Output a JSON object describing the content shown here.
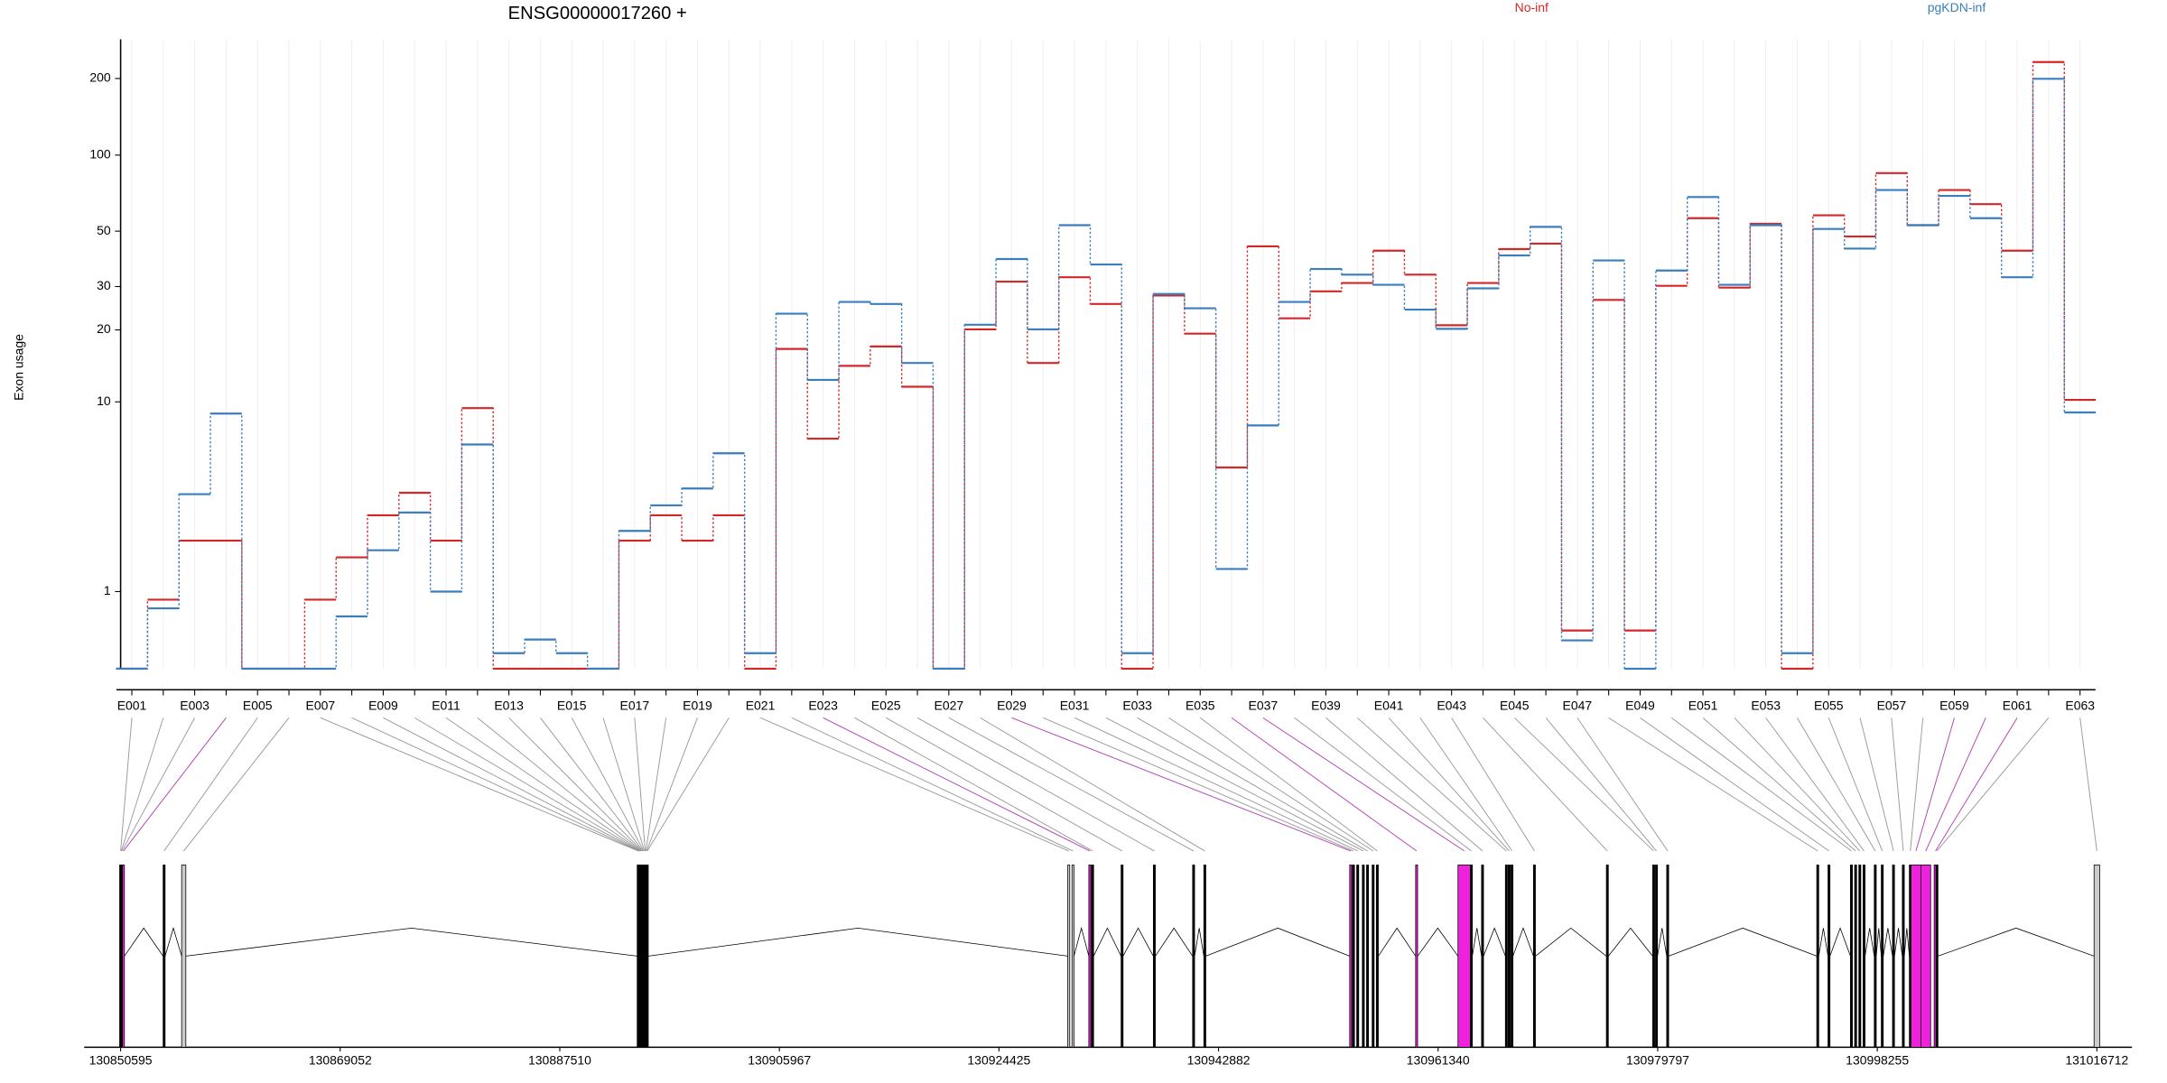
{
  "chart_data": {
    "type": "line",
    "title": "ENSG00000017260 +",
    "y_label": "Exon usage",
    "yscale": "log1p",
    "categories": [
      "E001",
      null,
      "E003",
      null,
      "E005",
      null,
      "E007",
      null,
      "E009",
      null,
      "E011",
      null,
      "E013",
      null,
      "E015",
      null,
      "E017",
      null,
      "E019",
      null,
      "E021",
      null,
      "E023",
      null,
      "E025",
      null,
      "E027",
      null,
      "E029",
      null,
      "E031",
      null,
      "E033",
      null,
      "E035",
      null,
      "E037",
      null,
      "E039",
      null,
      "E041",
      null,
      "E043",
      null,
      "E045",
      null,
      "E047",
      null,
      "E049",
      null,
      "E051",
      null,
      "E053",
      null,
      "E055",
      null,
      "E057",
      null,
      "E059",
      null,
      "E061",
      null,
      "E063"
    ],
    "series": [
      {
        "name": "No-inf",
        "color": "#d62728",
        "values": [
          0,
          0.86,
          2.16,
          2.16,
          0,
          0,
          0.86,
          1.72,
          2.97,
          3.86,
          2.16,
          9.4,
          0,
          0,
          0,
          0,
          2.16,
          2.97,
          2.16,
          2.97,
          0,
          16.7,
          6.9,
          14.2,
          17.1,
          11.6,
          0,
          20.1,
          31.4,
          14.6,
          32.7,
          25.5,
          0,
          27.6,
          19.3,
          5.1,
          43.5,
          22.3,
          28.7,
          31,
          41.8,
          33.5,
          20.9,
          31,
          42.4,
          44.6,
          0.41,
          26.5,
          0.41,
          30.2,
          56.3,
          29.7,
          53.5,
          0,
          57.8,
          47.6,
          84.9,
          52.8,
          72.8,
          64,
          41.8,
          232,
          10.2
        ]
      },
      {
        "name": "pgKDN-inf",
        "color": "#3a7ebf",
        "values": [
          0,
          0.72,
          3.8,
          8.9,
          0,
          0,
          0,
          0.6,
          1.9,
          3.07,
          1.0,
          6.5,
          0.15,
          0.3,
          0.15,
          0,
          2.45,
          3.34,
          4.05,
          5.93,
          0.15,
          23.3,
          12.4,
          26,
          25.5,
          14.6,
          0,
          21,
          38.7,
          20.1,
          52.8,
          36.8,
          0.15,
          28,
          24.5,
          1.45,
          7.9,
          26,
          35.3,
          33.5,
          30.5,
          24.2,
          20.2,
          29.5,
          40,
          52,
          0.29,
          38.2,
          0,
          34.8,
          68.3,
          30.5,
          52.8,
          0.15,
          51,
          42.6,
          72.8,
          52.8,
          69,
          56.3,
          32.7,
          199.5,
          9
        ]
      }
    ],
    "ylim": [
      0,
      285
    ],
    "yticks": [
      1,
      10,
      20,
      30,
      50,
      100,
      200
    ],
    "grid": true,
    "gene_model": {
      "xlim": [
        130850595,
        131016712
      ],
      "xticks": [
        130850595,
        130869052,
        130887510,
        130905967,
        130924425,
        130942882,
        130961340,
        130979797,
        130998255,
        131016712
      ]
    }
  }
}
